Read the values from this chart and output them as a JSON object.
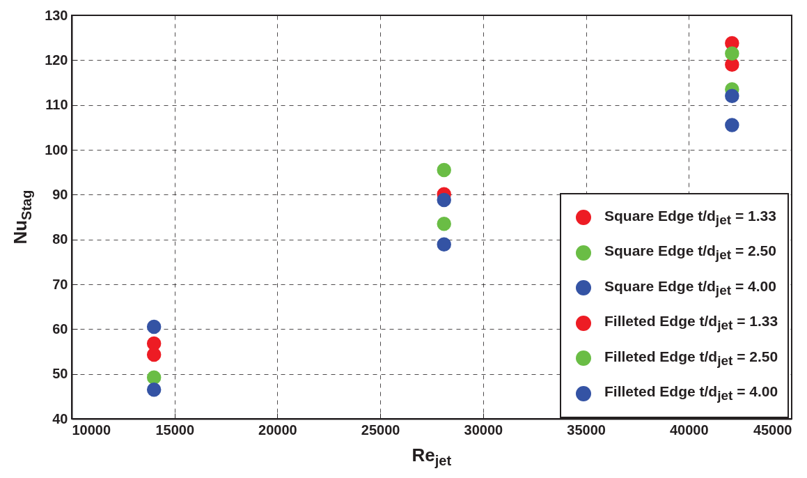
{
  "chart_data": {
    "type": "scatter",
    "xlabel": "Re$_{jet}$",
    "ylabel": "Nu$_{Stag}$",
    "x": [
      14000,
      28100,
      42100
    ],
    "series": [
      {
        "name": "Square Edge t/d$_{jet}$ = 1.33",
        "color": "#ed1c24",
        "values": [
          56.8,
          null,
          123.8
        ]
      },
      {
        "name": "Square Edge t/d$_{jet}$ = 2.50",
        "color": "#6abd45",
        "values": [
          49.2,
          83.5,
          113.5
        ]
      },
      {
        "name": "Square Edge t/d$_{jet}$ = 4.00",
        "color": "#3453a4",
        "values": [
          46.5,
          78.9,
          105.5
        ]
      },
      {
        "name": "Filleted Edge t/d$_{jet}$ = 1.33",
        "color": "#ed1c24",
        "values": [
          54.3,
          90.1,
          119
        ]
      },
      {
        "name": "Filleted Edge t/d$_{jet}$ = 2.50",
        "color": "#6abd45",
        "values": [
          null,
          95.5,
          121.5
        ]
      },
      {
        "name": "Filleted Edge t/d$_{jet}$ = 4.00",
        "color": "#3453a4",
        "values": [
          60.5,
          88.8,
          112
        ]
      }
    ],
    "xlim": [
      10000,
      45000
    ],
    "xticks": [
      10000,
      15000,
      20000,
      25000,
      30000,
      35000,
      40000,
      45000
    ],
    "ylim": [
      40,
      130
    ],
    "yticks": [
      40,
      50,
      60,
      70,
      80,
      90,
      100,
      110,
      120,
      130
    ],
    "grid": true,
    "legend": "bottom right",
    "marker": "circle"
  }
}
